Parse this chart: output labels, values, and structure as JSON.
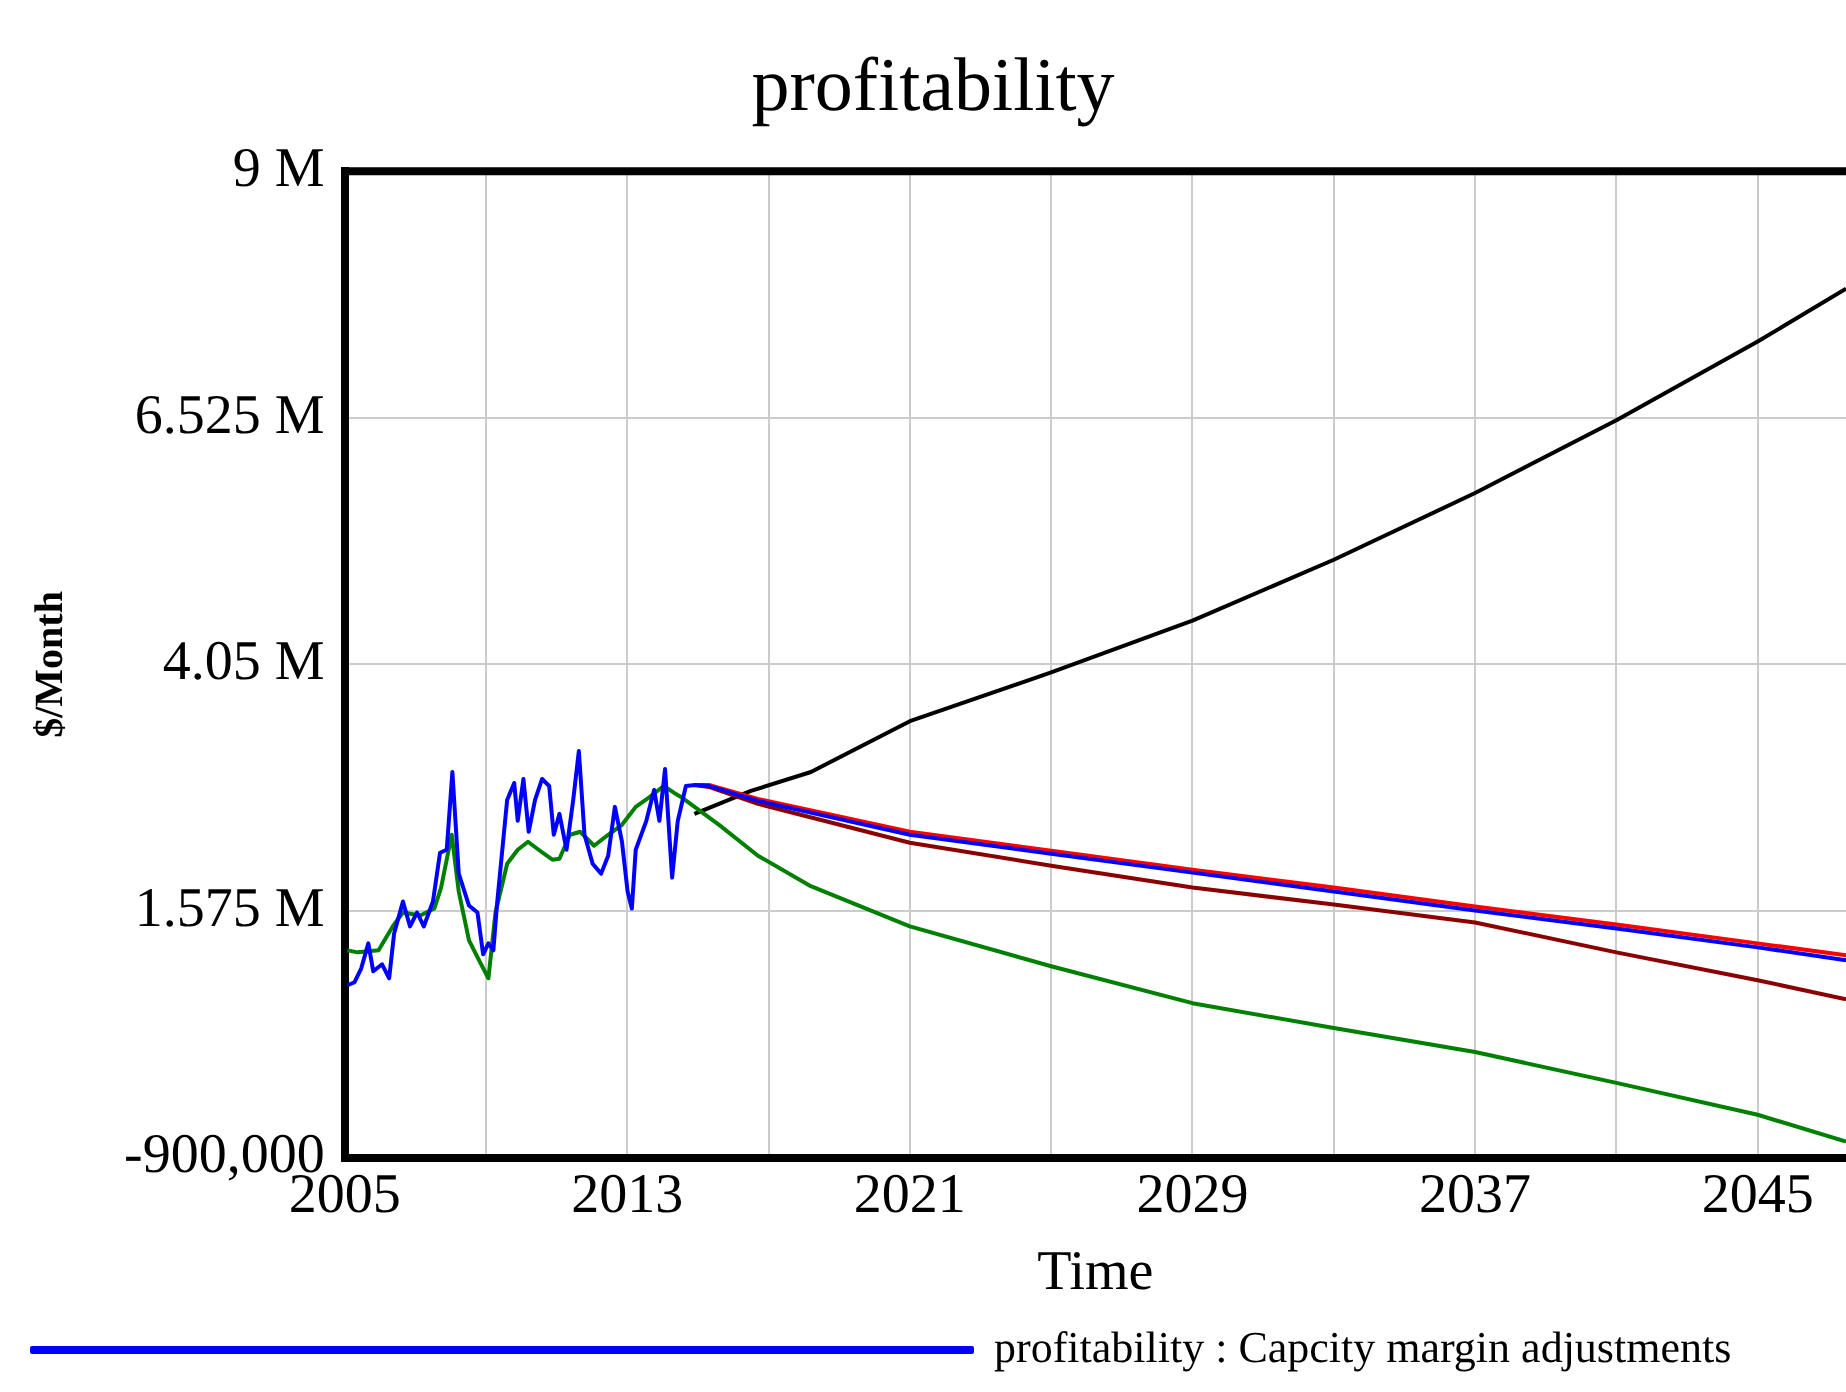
{
  "chart_data": {
    "type": "line",
    "title": "profitability",
    "xlabel": "Time",
    "ylabel": "$/Month",
    "xlim": [
      2005,
      2047.5
    ],
    "xticks": [
      2005,
      {
        "value": 2009,
        "label": null
      },
      2013,
      {
        "value": 2017,
        "label": null
      },
      2021,
      {
        "value": 2025,
        "label": null
      },
      2029,
      {
        "value": 2033,
        "label": null
      },
      2037,
      {
        "value": 2041,
        "label": null
      },
      2045
    ],
    "ylim": [
      -900000,
      9000000
    ],
    "yticks": [
      {
        "value": -900000,
        "label": "-900,000"
      },
      {
        "value": 1575000,
        "label": "1.575 M"
      },
      {
        "value": 4050000,
        "label": "4.05 M"
      },
      {
        "value": 6525000,
        "label": "6.525 M"
      },
      {
        "value": 9000000,
        "label": "9 M"
      }
    ],
    "grid": true,
    "legend": "bottom",
    "marker": "none",
    "line_style": "solid",
    "series": [
      {
        "name": "profitability : Capcity margin adjustments",
        "color": "#0000ff",
        "x": [
          2005.08,
          2005.28,
          2005.47,
          2005.67,
          2005.81,
          2006.06,
          2006.26,
          2006.4,
          2006.65,
          2006.85,
          2007.05,
          2007.24,
          2007.5,
          2007.7,
          2007.89,
          2008.05,
          2008.23,
          2008.52,
          2008.76,
          2008.92,
          2009.07,
          2009.21,
          2009.31,
          2009.6,
          2009.8,
          2009.9,
          2010.06,
          2010.21,
          2010.39,
          2010.59,
          2010.79,
          2010.92,
          2011.08,
          2011.28,
          2011.47,
          2011.63,
          2011.79,
          2012.02,
          2012.26,
          2012.46,
          2012.65,
          2012.85,
          2013.01,
          2013.13,
          2013.24,
          2013.54,
          2013.76,
          2013.91,
          2014.07,
          2014.27,
          2014.43,
          2014.66,
          2014.92,
          2015.31,
          2016.7,
          2021,
          2025,
          2029,
          2033,
          2037,
          2041,
          2045,
          2047.5
        ],
        "values": [
          830000,
          860000,
          1000000,
          1250000,
          970000,
          1040000,
          900000,
          1350000,
          1670000,
          1420000,
          1560000,
          1420000,
          1670000,
          2160000,
          2190000,
          2970000,
          1950000,
          1630000,
          1560000,
          1140000,
          1250000,
          1180000,
          1630000,
          2690000,
          2860000,
          2480000,
          2900000,
          2370000,
          2690000,
          2900000,
          2830000,
          2340000,
          2550000,
          2190000,
          2690000,
          3180000,
          2340000,
          2050000,
          1950000,
          2130000,
          2620000,
          2270000,
          1770000,
          1600000,
          2190000,
          2480000,
          2790000,
          2480000,
          3000000,
          1910000,
          2480000,
          2830000,
          2840000,
          2830000,
          2680000,
          2340000,
          2150000,
          1960000,
          1770000,
          1580000,
          1400000,
          1210000,
          1080000
        ]
      },
      {
        "color": "#ff0000",
        "x": [
          2014.92,
          2015.31,
          2016.7,
          2021,
          2025,
          2029,
          2033,
          2037,
          2041,
          2045,
          2047.5
        ],
        "values": [
          2840000,
          2840000,
          2700000,
          2370000,
          2180000,
          1990000,
          1810000,
          1620000,
          1440000,
          1250000,
          1130000
        ]
      },
      {
        "color": "#8b0000",
        "x": [
          2014.92,
          2015.31,
          2016.7,
          2021,
          2025,
          2029,
          2033,
          2037,
          2041,
          2045,
          2047.5
        ],
        "values": [
          2840000,
          2820000,
          2650000,
          2260000,
          2030000,
          1810000,
          1640000,
          1460000,
          1160000,
          880000,
          690000
        ]
      },
      {
        "color": "#008000",
        "x": [
          2005.08,
          2005.37,
          2005.96,
          2006.36,
          2006.65,
          2007.14,
          2007.54,
          2007.73,
          2008.03,
          2008.23,
          2008.52,
          2008.82,
          2009.07,
          2009.27,
          2009.6,
          2009.9,
          2010.19,
          2010.49,
          2010.88,
          2011.08,
          2011.38,
          2011.67,
          2012.06,
          2012.46,
          2012.85,
          2013.24,
          2013.64,
          2014.03,
          2014.33,
          2014.52,
          2015.6,
          2016.7,
          2018.16,
          2021,
          2025,
          2029,
          2033,
          2037,
          2041,
          2045,
          2047.5
        ],
        "values": [
          1180000,
          1160000,
          1180000,
          1420000,
          1560000,
          1530000,
          1600000,
          1810000,
          2340000,
          1770000,
          1280000,
          1070000,
          900000,
          1560000,
          2050000,
          2190000,
          2270000,
          2190000,
          2090000,
          2100000,
          2340000,
          2370000,
          2230000,
          2340000,
          2440000,
          2620000,
          2720000,
          2830000,
          2760000,
          2720000,
          2440000,
          2130000,
          1830000,
          1420000,
          1020000,
          650000,
          400000,
          160000,
          -150000,
          -470000,
          -740000
        ]
      },
      {
        "color": "#000000",
        "x": [
          2014.9,
          2016.5,
          2018.2,
          2021,
          2025,
          2029,
          2033,
          2037,
          2041,
          2045,
          2047.5
        ],
        "values": [
          2550000,
          2780000,
          2970000,
          3480000,
          3970000,
          4490000,
          5100000,
          5770000,
          6500000,
          7290000,
          7820000
        ]
      }
    ]
  }
}
